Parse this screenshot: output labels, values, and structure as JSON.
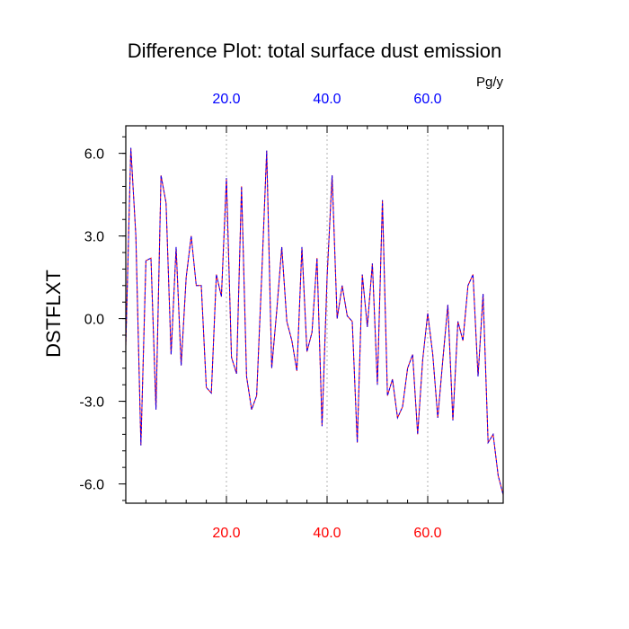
{
  "chart_data": {
    "type": "line",
    "title": "Difference Plot: total surface dust emission",
    "ylabel": "DSTFLXT",
    "units": "Pg/y",
    "xlim": [
      0,
      75
    ],
    "ylim": [
      -6.7,
      7.0
    ],
    "x_ticks": [
      20,
      40,
      60
    ],
    "x_tick_labels": [
      "20.0",
      "40.0",
      "60.0"
    ],
    "y_ticks": [
      6,
      3,
      0,
      -3,
      -6
    ],
    "y_tick_labels": [
      "6.0",
      "3.0",
      "0.0",
      "-3.0",
      "-6.0"
    ],
    "x_tick_color_bottom": "#ff0000",
    "x_tick_color_top": "#0000ff",
    "grid": "vertical dotted at major x ticks",
    "series": [
      {
        "color_solid": "#ff0000",
        "color_dashed": "#0000ff",
        "x": [
          0,
          1,
          2,
          3,
          4,
          5,
          6,
          7,
          8,
          9,
          10,
          11,
          12,
          13,
          14,
          15,
          16,
          17,
          18,
          19,
          20,
          21,
          22,
          23,
          24,
          25,
          26,
          27,
          28,
          29,
          30,
          31,
          32,
          33,
          34,
          35,
          36,
          37,
          38,
          39,
          40,
          41,
          42,
          43,
          44,
          45,
          46,
          47,
          48,
          49,
          50,
          51,
          52,
          53,
          54,
          55,
          56,
          57,
          58,
          59,
          60,
          61,
          62,
          63,
          64,
          65,
          66,
          67,
          68,
          69,
          70,
          71,
          72,
          73,
          74,
          75
        ],
        "values": [
          -1.0,
          6.2,
          3.0,
          -4.6,
          2.1,
          2.2,
          -3.3,
          5.2,
          4.2,
          -1.3,
          2.6,
          -1.7,
          1.5,
          3.0,
          1.2,
          1.2,
          -2.5,
          -2.7,
          1.6,
          0.8,
          5.1,
          -1.4,
          -2.0,
          4.8,
          -2.1,
          -3.3,
          -2.8,
          1.5,
          6.1,
          -1.8,
          0.3,
          2.6,
          -0.1,
          -0.8,
          -1.9,
          2.6,
          -1.2,
          -0.5,
          2.2,
          -3.9,
          1.5,
          5.2,
          0.0,
          1.2,
          0.1,
          -0.1,
          -4.5,
          1.6,
          -0.3,
          2.0,
          -2.4,
          4.3,
          -2.8,
          -2.2,
          -3.6,
          -3.2,
          -1.8,
          -1.3,
          -4.2,
          -1.5,
          0.2,
          -1.3,
          -3.6,
          -1.5,
          0.5,
          -3.7,
          -0.1,
          -0.8,
          1.2,
          1.6,
          -2.1,
          0.9,
          -4.5,
          -4.2,
          -5.7,
          -6.4
        ]
      }
    ]
  }
}
